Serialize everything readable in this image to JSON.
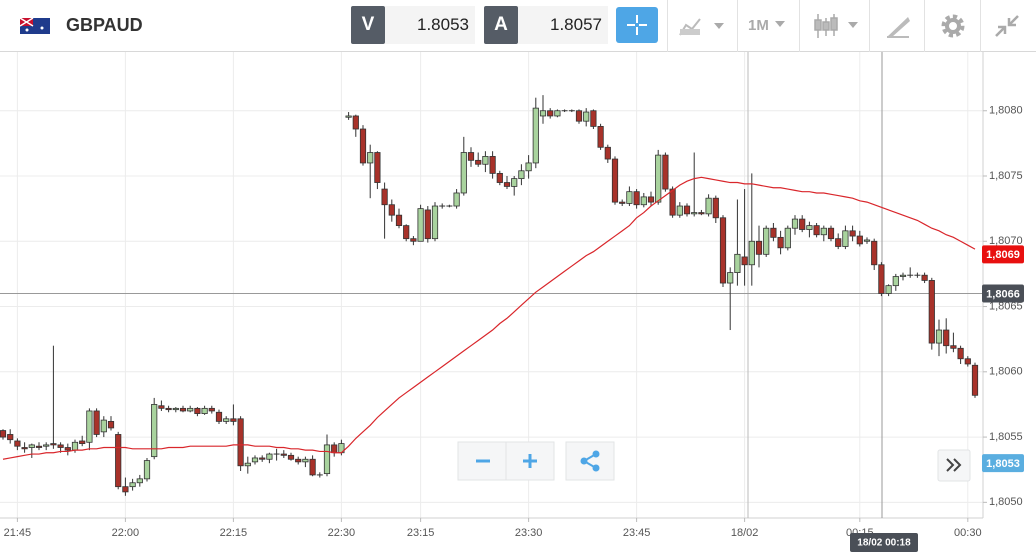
{
  "toolbar": {
    "symbol": "GBPAUD",
    "sell_label": "V",
    "sell_price": "1.8053",
    "buy_label": "A",
    "buy_price": "1.8057",
    "timeframe": "1M"
  },
  "chart_data": {
    "type": "candlestick",
    "categories": [
      null,
      null,
      "21:45",
      null,
      null,
      null,
      null,
      null,
      null,
      null,
      null,
      null,
      null,
      null,
      null,
      null,
      null,
      "22:00",
      null,
      null,
      null,
      null,
      null,
      null,
      null,
      null,
      null,
      null,
      null,
      null,
      null,
      null,
      "22:15",
      null,
      null,
      null,
      null,
      null,
      null,
      null,
      null,
      null,
      null,
      null,
      null,
      null,
      null,
      "22:30",
      null,
      null,
      null,
      null,
      null,
      null,
      null,
      null,
      null,
      null,
      "23:15",
      null,
      null,
      null,
      null,
      null,
      null,
      null,
      null,
      null,
      null,
      null,
      null,
      null,
      null,
      "23:30",
      null,
      null,
      null,
      null,
      null,
      null,
      null,
      null,
      null,
      null,
      null,
      null,
      null,
      null,
      "23:45",
      null,
      null,
      null,
      null,
      null,
      null,
      null,
      null,
      null,
      null,
      null,
      null,
      null,
      null,
      "18/02",
      null,
      null,
      null,
      null,
      null,
      null,
      null,
      null,
      null,
      null,
      null,
      null,
      null,
      null,
      null,
      "00:15",
      null,
      null,
      null,
      null,
      null,
      null,
      null,
      null,
      null,
      null,
      null,
      null,
      null,
      null,
      "00:30",
      null
    ],
    "candles": [
      [
        1.80555,
        1.80556,
        1.80548,
        1.8055
      ],
      [
        1.80552,
        1.80556,
        1.80545,
        1.80548
      ],
      [
        1.80547,
        1.80549,
        1.8054,
        1.80543
      ],
      [
        1.80542,
        1.80546,
        1.80538,
        1.80541
      ],
      [
        1.80542,
        1.80545,
        1.80534,
        1.80544
      ],
      [
        1.80543,
        1.80546,
        1.8054,
        1.80542
      ],
      [
        1.80543,
        1.80546,
        1.8054,
        1.80544
      ],
      [
        1.80545,
        1.8062,
        1.80541,
        1.80544
      ],
      [
        1.80544,
        1.80546,
        1.80538,
        1.80542
      ],
      [
        1.80542,
        1.80545,
        1.80536,
        1.8054
      ],
      [
        1.8054,
        1.80548,
        1.80538,
        1.80546
      ],
      [
        1.80547,
        1.80551,
        1.80543,
        1.80545
      ],
      [
        1.80546,
        1.80572,
        1.8054,
        1.8057
      ],
      [
        1.8057,
        1.80572,
        1.8055,
        1.80552
      ],
      [
        1.80554,
        1.80566,
        1.8055,
        1.80563
      ],
      [
        1.80562,
        1.80566,
        1.80555,
        1.80557
      ],
      [
        1.80552,
        1.80554,
        1.8051,
        1.80512
      ],
      [
        1.80512,
        1.80519,
        1.80505,
        1.80508
      ],
      [
        1.80512,
        1.80518,
        1.80509,
        1.80515
      ],
      [
        1.80515,
        1.80521,
        1.80512,
        1.80518
      ],
      [
        1.80518,
        1.80534,
        1.80516,
        1.80532
      ],
      [
        1.80535,
        1.8058,
        1.80533,
        1.80575
      ],
      [
        1.80574,
        1.80578,
        1.8057,
        1.80572
      ],
      [
        1.80572,
        1.80574,
        1.80569,
        1.80571
      ],
      [
        1.80571,
        1.80573,
        1.80569,
        1.80572
      ],
      [
        1.80572,
        1.80574,
        1.80569,
        1.8057
      ],
      [
        1.8057,
        1.80574,
        1.80569,
        1.80572
      ],
      [
        1.80572,
        1.80573,
        1.80566,
        1.80568
      ],
      [
        1.80568,
        1.80574,
        1.80567,
        1.80572
      ],
      [
        1.80572,
        1.80574,
        1.80568,
        1.8057
      ],
      [
        1.80569,
        1.80571,
        1.8056,
        1.80562
      ],
      [
        1.80562,
        1.80566,
        1.8056,
        1.80564
      ],
      [
        1.80564,
        1.80575,
        1.80559,
        1.80562
      ],
      [
        1.80564,
        1.80566,
        1.80524,
        1.80528
      ],
      [
        1.80528,
        1.80535,
        1.80522,
        1.8053
      ],
      [
        1.80531,
        1.80536,
        1.80529,
        1.80534
      ],
      [
        1.80534,
        1.80536,
        1.80531,
        1.80533
      ],
      [
        1.80533,
        1.80538,
        1.8053,
        1.80537
      ],
      [
        1.80537,
        1.80541,
        1.80532,
        1.80537
      ],
      [
        1.80537,
        1.8054,
        1.80534,
        1.80536
      ],
      [
        1.80536,
        1.80538,
        1.80532,
        1.80533
      ],
      [
        1.80533,
        1.80535,
        1.80529,
        1.80531
      ],
      [
        1.80531,
        1.80535,
        1.80527,
        1.80533
      ],
      [
        1.80533,
        1.80536,
        1.8052,
        1.80521
      ],
      [
        1.80521,
        1.80523,
        1.80519,
        1.80521
      ],
      [
        1.80522,
        1.80552,
        1.8052,
        1.80544
      ],
      [
        1.80544,
        1.80546,
        1.80535,
        1.80538
      ],
      [
        1.80538,
        1.80548,
        1.80536,
        1.80545
      ],
      [
        1.80795,
        1.80799,
        1.80793,
        1.80796
      ],
      [
        1.80796,
        1.80797,
        1.8078,
        1.80786
      ],
      [
        1.80786,
        1.80789,
        1.80758,
        1.8076
      ],
      [
        1.8076,
        1.80774,
        1.80733,
        1.80768
      ],
      [
        1.80768,
        1.80769,
        1.8074,
        1.80745
      ],
      [
        1.8074,
        1.80745,
        1.80702,
        1.80728
      ],
      [
        1.80728,
        1.80732,
        1.80715,
        1.8072
      ],
      [
        1.8072,
        1.80725,
        1.8071,
        1.80712
      ],
      [
        1.80712,
        1.80713,
        1.807,
        1.80702
      ],
      [
        1.80702,
        1.80704,
        1.80697,
        1.807
      ],
      [
        1.807,
        1.80728,
        1.807,
        1.80725
      ],
      [
        1.80724,
        1.80727,
        1.80699,
        1.80702
      ],
      [
        1.80702,
        1.8073,
        1.807,
        1.80727
      ],
      [
        1.80727,
        1.80729,
        1.80725,
        1.80727
      ],
      [
        1.80727,
        1.80728,
        1.80726,
        1.80727
      ],
      [
        1.80727,
        1.8074,
        1.80725,
        1.80737
      ],
      [
        1.80737,
        1.8078,
        1.80735,
        1.80768
      ],
      [
        1.80768,
        1.80772,
        1.80757,
        1.80762
      ],
      [
        1.80762,
        1.80768,
        1.80757,
        1.80759
      ],
      [
        1.80759,
        1.80769,
        1.80753,
        1.80765
      ],
      [
        1.80765,
        1.80769,
        1.80748,
        1.80752
      ],
      [
        1.80752,
        1.80754,
        1.80743,
        1.80745
      ],
      [
        1.80745,
        1.8075,
        1.8074,
        1.80742
      ],
      [
        1.80742,
        1.8075,
        1.80735,
        1.80748
      ],
      [
        1.80748,
        1.80759,
        1.80743,
        1.80754
      ],
      [
        1.80754,
        1.80766,
        1.80748,
        1.8076
      ],
      [
        1.8076,
        1.8081,
        1.80756,
        1.80802
      ],
      [
        1.80796,
        1.80812,
        1.8079,
        1.808
      ],
      [
        1.808,
        1.80802,
        1.80794,
        1.80796
      ],
      [
        1.80796,
        1.80801,
        1.80795,
        1.808
      ],
      [
        1.808,
        1.80801,
        1.80799,
        1.808
      ],
      [
        1.808,
        1.80801,
        1.80799,
        1.808
      ],
      [
        1.808,
        1.80801,
        1.8079,
        1.80792
      ],
      [
        1.80792,
        1.80802,
        1.80788,
        1.80799
      ],
      [
        1.808,
        1.80801,
        1.80786,
        1.80788
      ],
      [
        1.80788,
        1.8079,
        1.8077,
        1.80772
      ],
      [
        1.80772,
        1.80774,
        1.8076,
        1.80763
      ],
      [
        1.80763,
        1.80765,
        1.80728,
        1.8073
      ],
      [
        1.8073,
        1.80732,
        1.80727,
        1.80729
      ],
      [
        1.80729,
        1.80742,
        1.80727,
        1.80738
      ],
      [
        1.80738,
        1.8074,
        1.80725,
        1.80728
      ],
      [
        1.80728,
        1.80737,
        1.80726,
        1.80734
      ],
      [
        1.80734,
        1.80738,
        1.80727,
        1.8073
      ],
      [
        1.8073,
        1.8077,
        1.80728,
        1.80766
      ],
      [
        1.80766,
        1.80768,
        1.80738,
        1.8074
      ],
      [
        1.8074,
        1.80742,
        1.80718,
        1.8072
      ],
      [
        1.8072,
        1.8073,
        1.80718,
        1.80727
      ],
      [
        1.80727,
        1.80729,
        1.80719,
        1.80721
      ],
      [
        1.80721,
        1.80768,
        1.80719,
        1.80722
      ],
      [
        1.80722,
        1.80724,
        1.8072,
        1.80721
      ],
      [
        1.80721,
        1.80736,
        1.80719,
        1.80733
      ],
      [
        1.80733,
        1.80735,
        1.80714,
        1.80718
      ],
      [
        1.80718,
        1.8072,
        1.80665,
        1.80668
      ],
      [
        1.80668,
        1.8068,
        1.80632,
        1.80676
      ],
      [
        1.80676,
        1.80732,
        1.80666,
        1.8069
      ],
      [
        1.80688,
        1.8074,
        1.80666,
        1.80682
      ],
      [
        1.80682,
        1.80752,
        1.80666,
        1.807
      ],
      [
        1.807,
        1.80712,
        1.8068,
        1.8069
      ],
      [
        1.8069,
        1.80712,
        1.80688,
        1.8071
      ],
      [
        1.8071,
        1.80714,
        1.807,
        1.80703
      ],
      [
        1.80703,
        1.80708,
        1.8069,
        1.80695
      ],
      [
        1.80695,
        1.80712,
        1.80693,
        1.8071
      ],
      [
        1.8071,
        1.8072,
        1.80705,
        1.80717
      ],
      [
        1.80717,
        1.8072,
        1.80707,
        1.80709
      ],
      [
        1.80709,
        1.80715,
        1.80703,
        1.80712
      ],
      [
        1.80712,
        1.80714,
        1.80703,
        1.80705
      ],
      [
        1.80705,
        1.80712,
        1.807,
        1.8071
      ],
      [
        1.8071,
        1.80712,
        1.807,
        1.80702
      ],
      [
        1.80702,
        1.80706,
        1.80694,
        1.80696
      ],
      [
        1.80696,
        1.80712,
        1.80694,
        1.80708
      ],
      [
        1.80708,
        1.80712,
        1.807,
        1.80704
      ],
      [
        1.80704,
        1.80708,
        1.80696,
        1.80698
      ],
      [
        1.807,
        1.80703,
        1.80698,
        1.80701
      ],
      [
        1.807,
        1.80702,
        1.80678,
        1.80682
      ],
      [
        1.80682,
        1.80684,
        1.80658,
        1.8066
      ],
      [
        1.8066,
        1.80667,
        1.80658,
        1.80666
      ],
      [
        1.80666,
        1.80675,
        1.80662,
        1.80673
      ],
      [
        1.80673,
        1.80676,
        1.8067,
        1.80674
      ],
      [
        1.80674,
        1.8068,
        1.80672,
        1.80674
      ],
      [
        1.80674,
        1.80676,
        1.80672,
        1.80674
      ],
      [
        1.80674,
        1.80676,
        1.80668,
        1.8067
      ],
      [
        1.8067,
        1.80672,
        1.80617,
        1.80622
      ],
      [
        1.80622,
        1.8064,
        1.80612,
        1.80632
      ],
      [
        1.80632,
        1.80641,
        1.80614,
        1.8062
      ],
      [
        1.8062,
        1.8063,
        1.80615,
        1.80618
      ],
      [
        1.80618,
        1.8062,
        1.80606,
        1.8061
      ],
      [
        1.8061,
        1.80612,
        1.80604,
        1.80606
      ],
      [
        1.80605,
        1.80607,
        1.8058,
        1.80582
      ]
    ],
    "up_color": "#a9d39e",
    "down_color": "#a8322a",
    "ma": {
      "color": "#d9262b",
      "values": [
        1.80533,
        1.80534,
        1.80535,
        1.80536,
        1.80537,
        1.80537,
        1.80538,
        1.80538,
        1.80539,
        1.80539,
        1.8054,
        1.8054,
        1.80541,
        1.80541,
        1.80542,
        1.80542,
        1.80542,
        1.80542,
        1.80541,
        1.80541,
        1.80541,
        1.80541,
        1.80541,
        1.80542,
        1.80542,
        1.80542,
        1.80543,
        1.80543,
        1.80543,
        1.80543,
        1.80543,
        1.80543,
        1.80544,
        1.80544,
        1.80544,
        1.80543,
        1.80543,
        1.80543,
        1.80542,
        1.80542,
        1.80541,
        1.80541,
        1.8054,
        1.8054,
        1.80539,
        1.80539,
        1.80538,
        1.80538,
        1.80543,
        1.80549,
        1.80554,
        1.80559,
        1.80565,
        1.8057,
        1.80575,
        1.8058,
        1.80584,
        1.80588,
        1.80592,
        1.80596,
        1.806,
        1.80604,
        1.80608,
        1.80612,
        1.80616,
        1.8062,
        1.80624,
        1.80628,
        1.80632,
        1.80637,
        1.80641,
        1.80646,
        1.80651,
        1.80656,
        1.80661,
        1.80665,
        1.80669,
        1.80673,
        1.80677,
        1.80681,
        1.80685,
        1.80689,
        1.80692,
        1.80696,
        1.807,
        1.80704,
        1.80708,
        1.80712,
        1.80718,
        1.80722,
        1.80727,
        1.80731,
        1.80735,
        1.80739,
        1.80743,
        1.80746,
        1.80748,
        1.80749,
        1.80748,
        1.80747,
        1.80746,
        1.80745,
        1.80745,
        1.80744,
        1.80744,
        1.80743,
        1.80742,
        1.80741,
        1.80741,
        1.8074,
        1.80739,
        1.80738,
        1.80738,
        1.80737,
        1.80737,
        1.80736,
        1.80735,
        1.80734,
        1.80733,
        1.80731,
        1.8073,
        1.80728,
        1.80726,
        1.80724,
        1.80722,
        1.8072,
        1.80718,
        1.80716,
        1.80713,
        1.8071,
        1.80708,
        1.80705,
        1.80703,
        1.807,
        1.80697,
        1.80694
      ]
    },
    "ylim": [
      1.80845,
      1.80488
    ],
    "yticks": [
      {
        "value": 1.805,
        "label": "1,8050"
      },
      {
        "value": 1.8055,
        "label": "1,8055"
      },
      {
        "value": 1.806,
        "label": "1,8060"
      },
      {
        "value": 1.8065,
        "label": "1,8065"
      },
      {
        "value": 1.807,
        "label": "1,8070"
      },
      {
        "value": 1.8075,
        "label": "1,8075"
      },
      {
        "value": 1.808,
        "label": "1,8080"
      }
    ],
    "grid": true,
    "price_labels": [
      {
        "value": 1.8069,
        "label": "1,8069",
        "color": "#e8100f"
      },
      {
        "value": 1.8066,
        "label": "1,8066",
        "color": "#4a4f57"
      },
      {
        "value": 1.8053,
        "label": "1,8053",
        "color": "#5aaee0"
      }
    ],
    "crosshair": {
      "value": 1.8066,
      "time_label": "18/02 00:18"
    }
  }
}
